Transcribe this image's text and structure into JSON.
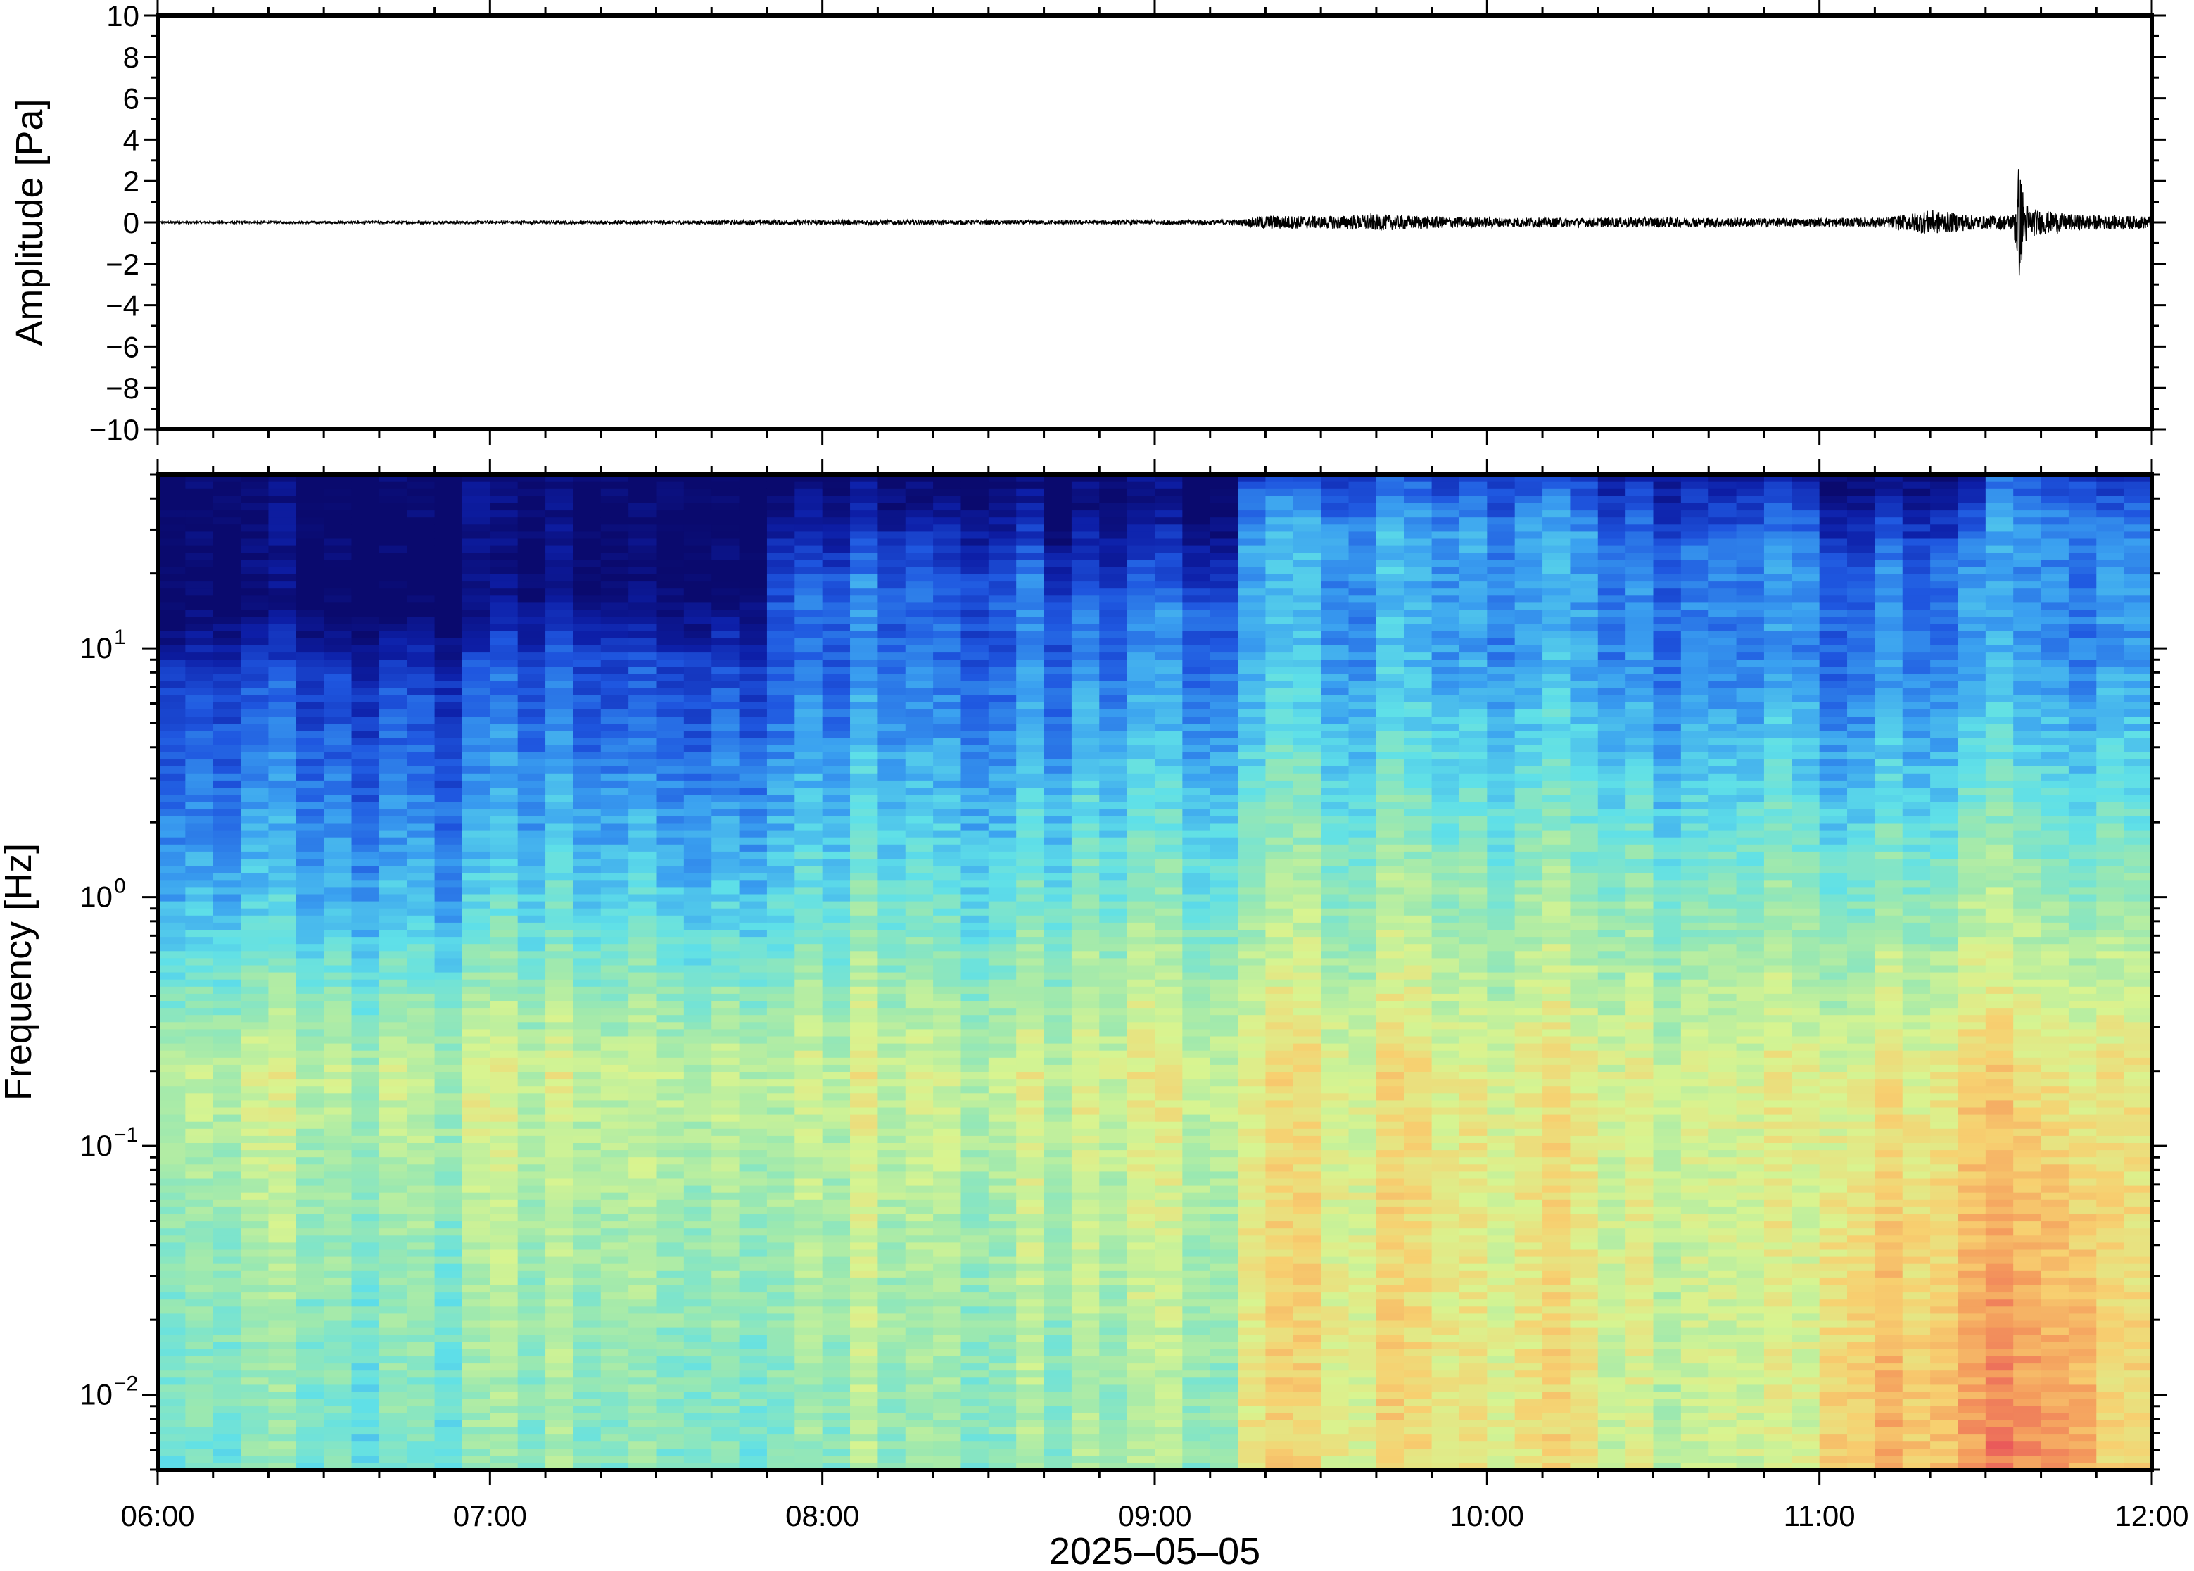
{
  "chart_data": [
    {
      "type": "line",
      "panel": "waveform",
      "ylabel": "Amplitude [Pa]",
      "ylim": [
        -10,
        10
      ],
      "yticks": [
        10,
        8,
        6,
        4,
        2,
        0,
        -2,
        -4,
        -6,
        -8,
        -10
      ],
      "ytick_labels": [
        "10",
        "8",
        "6",
        "4",
        "2",
        "0",
        "−2",
        "−4",
        "−6",
        "−8",
        "−10"
      ],
      "x_range": [
        "06:00",
        "12:00"
      ],
      "series": [
        {
          "x": [
            "06:00",
            "06:30",
            "07:00",
            "07:30",
            "08:00",
            "08:30",
            "09:00",
            "09:15",
            "09:20",
            "09:30",
            "09:40",
            "09:50",
            "10:00",
            "10:15",
            "10:30",
            "10:45",
            "11:00",
            "11:12",
            "11:20",
            "11:30",
            "11:35",
            "11:36",
            "11:37",
            "11:38",
            "11:40",
            "11:45",
            "11:50",
            "12:00"
          ],
          "y": [
            0.05,
            0.06,
            0.07,
            0.08,
            0.12,
            0.1,
            0.1,
            0.12,
            0.35,
            0.3,
            0.4,
            0.3,
            0.25,
            0.22,
            0.25,
            0.22,
            0.2,
            0.25,
            0.6,
            0.3,
            0.4,
            2.9,
            1.2,
            0.7,
            0.6,
            0.4,
            0.35,
            0.3
          ]
        }
      ]
    },
    {
      "type": "heatmap",
      "panel": "spectrogram",
      "ylabel": "Frequency [Hz]",
      "xlabel": "2025–05–05",
      "y_scale": "log",
      "ylim": [
        0.005,
        50
      ],
      "yticks": [
        0.01,
        0.1,
        1,
        10
      ],
      "ytick_labels": [
        {
          "base": "10",
          "exp": "−2"
        },
        {
          "base": "10",
          "exp": "−1"
        },
        {
          "base": "10",
          "exp": "0"
        },
        {
          "base": "10",
          "exp": "1"
        }
      ],
      "xticks": [
        "06:00",
        "07:00",
        "08:00",
        "09:00",
        "10:00",
        "11:00",
        "12:00"
      ],
      "colormap": "jet",
      "colors": [
        "#0a0a6e",
        "#0d1fa8",
        "#1f57e0",
        "#3aa0f0",
        "#5fe0e8",
        "#9be8b0",
        "#d8f490",
        "#f7d070",
        "#f49a5c",
        "#e8505a"
      ],
      "level_relative_0_to_1": {
        "time_blocks": [
          "06:00-07:00",
          "07:00-07:50",
          "07:50-08:40",
          "08:40-09:15",
          "09:15-10:20",
          "10:20-11:00",
          "11:00-11:30",
          "11:30-11:50",
          "11:50-12:00"
        ],
        "below_0.05_Hz": [
          0.5,
          0.52,
          0.56,
          0.55,
          0.72,
          0.66,
          0.82,
          0.9,
          0.74
        ],
        "around_0.2_Hz": [
          0.64,
          0.64,
          0.66,
          0.66,
          0.7,
          0.68,
          0.71,
          0.74,
          0.7
        ],
        "around_1_Hz": [
          0.38,
          0.42,
          0.48,
          0.5,
          0.56,
          0.54,
          0.54,
          0.58,
          0.54
        ],
        "around_10_Hz": [
          0.16,
          0.18,
          0.26,
          0.26,
          0.34,
          0.3,
          0.28,
          0.32,
          0.3
        ],
        "noise_floor_top_Hz": [
          8,
          9,
          18,
          14,
          28,
          24,
          20,
          32,
          26
        ]
      }
    }
  ]
}
